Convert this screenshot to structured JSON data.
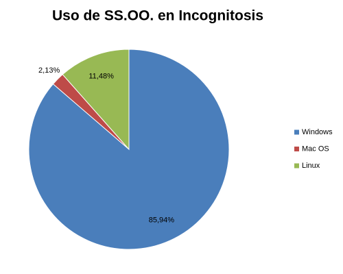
{
  "chart_data": {
    "type": "pie",
    "title": "Uso de SS.OO. en Incognitosis",
    "categories": [
      "Windows",
      "Mac OS",
      "Linux"
    ],
    "values": [
      85.94,
      2.13,
      11.48
    ],
    "value_labels": [
      "85,94%",
      "2,13%",
      "11,48%"
    ],
    "colors": [
      "#4a7ebb",
      "#be4b48",
      "#98b954"
    ],
    "legend": "right"
  }
}
